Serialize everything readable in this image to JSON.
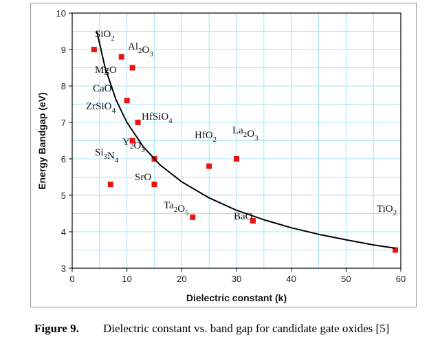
{
  "chart_data": {
    "type": "scatter",
    "xlabel": "Dielectric constant (k)",
    "ylabel": "Energy Bandgap (eV)",
    "xlim": [
      0,
      60
    ],
    "xticks": [
      0,
      10,
      20,
      30,
      40,
      50,
      60
    ],
    "ylim": [
      3,
      10
    ],
    "yticks": [
      3,
      4,
      5,
      6,
      7,
      8,
      9,
      10
    ],
    "grid": true,
    "grid_color": "#a6e4f2",
    "series": [
      {
        "type": "scatter",
        "color": "#ee1111",
        "x": [
          4,
          9,
          11,
          10,
          12,
          15,
          11,
          7,
          25,
          30,
          15,
          22,
          33,
          59
        ],
        "values": [
          9,
          8.8,
          8.5,
          7.6,
          7,
          6,
          6.5,
          5.3,
          5.8,
          6,
          5.3,
          4.4,
          4.3,
          3.5
        ],
        "labels": [
          "SiO2",
          "Al2O3",
          "MgO",
          "CaO",
          "ZrSiO4",
          "HfSiO4",
          "Y2O3",
          "Si3N4",
          "HfO2",
          "La2O3",
          "SrO",
          "Ta2O5",
          "BaO",
          "TiO2"
        ]
      },
      {
        "type": "line",
        "color": "#000000",
        "x": [
          4.5,
          6,
          8,
          10,
          13,
          16,
          20,
          25,
          30,
          35,
          40,
          45,
          50,
          55,
          59
        ],
        "values": [
          9.5,
          8.51,
          7.62,
          7.0,
          6.33,
          5.84,
          5.37,
          4.93,
          4.59,
          4.33,
          4.11,
          3.93,
          3.78,
          3.64,
          3.55
        ]
      }
    ]
  },
  "caption": {
    "label": "Figure 9.",
    "text": "Dielectric constant vs. band gap for candidate gate oxides [5]"
  }
}
